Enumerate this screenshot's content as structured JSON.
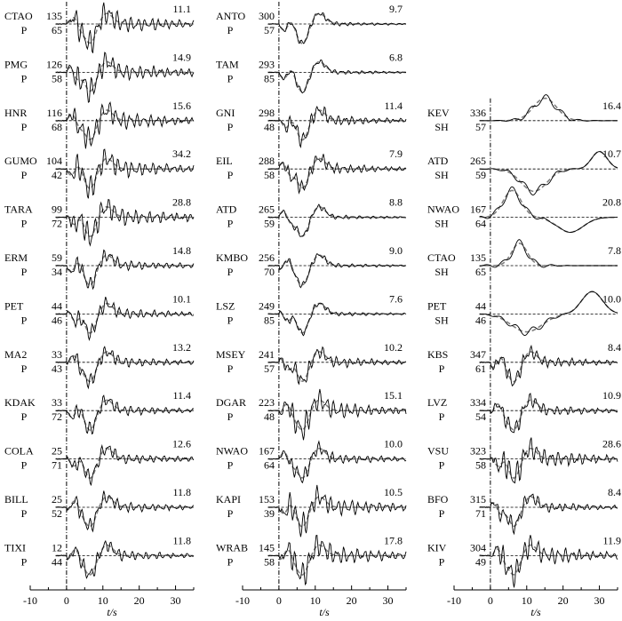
{
  "chart_data": {
    "type": "line",
    "xlabel": "t/s",
    "x_ticks": [
      -10,
      0,
      10,
      20,
      30
    ],
    "xlim": [
      -10,
      35
    ],
    "series_legend": [],
    "columns": [
      {
        "panels": [
          {
            "station": "CTAO",
            "azimuth": "135",
            "phase": "P",
            "distance": "65",
            "amplitude": "11.1",
            "shape": "p_high"
          },
          {
            "station": "PMG",
            "azimuth": "126",
            "phase": "P",
            "distance": "58",
            "amplitude": "14.9",
            "shape": "p_high"
          },
          {
            "station": "HNR",
            "azimuth": "116",
            "phase": "P",
            "distance": "68",
            "amplitude": "15.6",
            "shape": "p_high"
          },
          {
            "station": "GUMO",
            "azimuth": "104",
            "phase": "P",
            "distance": "42",
            "amplitude": "34.2",
            "shape": "p_high"
          },
          {
            "station": "TARA",
            "azimuth": "99",
            "phase": "P",
            "distance": "72",
            "amplitude": "28.8",
            "shape": "p_high"
          },
          {
            "station": "ERM",
            "azimuth": "59",
            "phase": "P",
            "distance": "34",
            "amplitude": "14.8",
            "shape": "p_mid"
          },
          {
            "station": "PET",
            "azimuth": "44",
            "phase": "P",
            "distance": "46",
            "amplitude": "10.1",
            "shape": "p_mid"
          },
          {
            "station": "MA2",
            "azimuth": "33",
            "phase": "P",
            "distance": "43",
            "amplitude": "13.2",
            "shape": "p_mid"
          },
          {
            "station": "KDAK",
            "azimuth": "33",
            "phase": "P",
            "distance": "72",
            "amplitude": "11.4",
            "shape": "p_mid"
          },
          {
            "station": "COLA",
            "azimuth": "25",
            "phase": "P",
            "distance": "71",
            "amplitude": "12.6",
            "shape": "p_mid"
          },
          {
            "station": "BILL",
            "azimuth": "25",
            "phase": "P",
            "distance": "52",
            "amplitude": "11.8",
            "shape": "p_mid"
          },
          {
            "station": "TIXI",
            "azimuth": "12",
            "phase": "P",
            "distance": "44",
            "amplitude": "11.8",
            "shape": "p_mid"
          }
        ]
      },
      {
        "panels": [
          {
            "station": "ANTO",
            "azimuth": "300",
            "phase": "P",
            "distance": "57",
            "amplitude": "9.7",
            "shape": "p_smooth"
          },
          {
            "station": "TAM",
            "azimuth": "293",
            "phase": "P",
            "distance": "85",
            "amplitude": "6.8",
            "shape": "p_smooth"
          },
          {
            "station": "GNI",
            "azimuth": "298",
            "phase": "P",
            "distance": "48",
            "amplitude": "11.4",
            "shape": "p_mid"
          },
          {
            "station": "EIL",
            "azimuth": "288",
            "phase": "P",
            "distance": "58",
            "amplitude": "7.9",
            "shape": "p_mid"
          },
          {
            "station": "ATD",
            "azimuth": "265",
            "phase": "P",
            "distance": "59",
            "amplitude": "8.8",
            "shape": "p_smooth"
          },
          {
            "station": "KMBO",
            "azimuth": "256",
            "phase": "P",
            "distance": "70",
            "amplitude": "9.0",
            "shape": "p_smooth"
          },
          {
            "station": "LSZ",
            "azimuth": "249",
            "phase": "P",
            "distance": "85",
            "amplitude": "7.6",
            "shape": "p_smooth"
          },
          {
            "station": "MSEY",
            "azimuth": "241",
            "phase": "P",
            "distance": "57",
            "amplitude": "10.2",
            "shape": "p_mid"
          },
          {
            "station": "DGAR",
            "azimuth": "223",
            "phase": "P",
            "distance": "48",
            "amplitude": "15.1",
            "shape": "p_high"
          },
          {
            "station": "NWAO",
            "azimuth": "167",
            "phase": "P",
            "distance": "64",
            "amplitude": "10.0",
            "shape": "p_mid"
          },
          {
            "station": "KAPI",
            "azimuth": "153",
            "phase": "P",
            "distance": "39",
            "amplitude": "10.5",
            "shape": "p_high"
          },
          {
            "station": "WRAB",
            "azimuth": "145",
            "phase": "P",
            "distance": "58",
            "amplitude": "17.8",
            "shape": "p_high"
          }
        ]
      },
      {
        "panels": [
          {
            "station": "KEV",
            "azimuth": "336",
            "phase": "SH",
            "distance": "57",
            "amplitude": "16.4",
            "shape": "sh_kev"
          },
          {
            "station": "ATD",
            "azimuth": "265",
            "phase": "SH",
            "distance": "59",
            "amplitude": "10.7",
            "shape": "sh_atd"
          },
          {
            "station": "NWAO",
            "azimuth": "167",
            "phase": "SH",
            "distance": "64",
            "amplitude": "20.8",
            "shape": "sh_nwao"
          },
          {
            "station": "CTAO",
            "azimuth": "135",
            "phase": "SH",
            "distance": "65",
            "amplitude": "7.8",
            "shape": "sh_ctao"
          },
          {
            "station": "PET",
            "azimuth": "44",
            "phase": "SH",
            "distance": "46",
            "amplitude": "10.0",
            "shape": "sh_pet"
          },
          {
            "station": "KBS",
            "azimuth": "347",
            "phase": "P",
            "distance": "61",
            "amplitude": "8.4",
            "shape": "p_mid"
          },
          {
            "station": "LVZ",
            "azimuth": "334",
            "phase": "P",
            "distance": "54",
            "amplitude": "10.9",
            "shape": "p_mid"
          },
          {
            "station": "VSU",
            "azimuth": "323",
            "phase": "P",
            "distance": "58",
            "amplitude": "28.6",
            "shape": "p_high"
          },
          {
            "station": "BFO",
            "azimuth": "315",
            "phase": "P",
            "distance": "71",
            "amplitude": "8.4",
            "shape": "p_mid"
          },
          {
            "station": "KIV",
            "azimuth": "304",
            "phase": "P",
            "distance": "49",
            "amplitude": "11.9",
            "shape": "p_high"
          }
        ]
      }
    ]
  }
}
